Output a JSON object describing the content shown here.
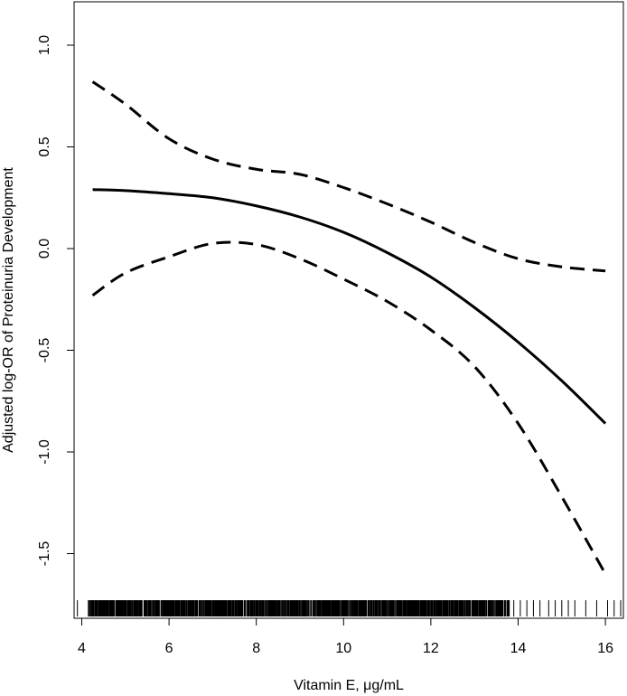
{
  "chart_data": {
    "type": "line",
    "title": "",
    "xlabel": "Vitamin E, μg/mL",
    "ylabel": "Adjusted log-OR of Proteinuria Development",
    "xlim": [
      3.8,
      16.4
    ],
    "ylim": [
      -1.75,
      1.2
    ],
    "grid": false,
    "legend": "none",
    "x_ticks": [
      4,
      6,
      8,
      10,
      12,
      14,
      16
    ],
    "x_tick_labels": [
      "4",
      "6",
      "8",
      "10",
      "12",
      "14",
      "16"
    ],
    "y_ticks": [
      1.0,
      0.5,
      0.0,
      -0.5,
      -1.0,
      -1.5
    ],
    "y_tick_labels": [
      "1.0",
      "0.5",
      "0.0",
      "-0.5",
      "-1.0",
      "-1.5"
    ],
    "series": [
      {
        "style": "solid",
        "points": [
          [
            4.25,
            0.29
          ],
          [
            5,
            0.285
          ],
          [
            6,
            0.27
          ],
          [
            7,
            0.25
          ],
          [
            8,
            0.21
          ],
          [
            9,
            0.155
          ],
          [
            10,
            0.08
          ],
          [
            11,
            -0.02
          ],
          [
            12,
            -0.14
          ],
          [
            13,
            -0.29
          ],
          [
            14,
            -0.46
          ],
          [
            15,
            -0.65
          ],
          [
            16,
            -0.86
          ]
        ]
      },
      {
        "style": "dashed",
        "points": [
          [
            4.25,
            0.82
          ],
          [
            5,
            0.71
          ],
          [
            6,
            0.54
          ],
          [
            7,
            0.44
          ],
          [
            8,
            0.39
          ],
          [
            9,
            0.365
          ],
          [
            10,
            0.3
          ],
          [
            11,
            0.22
          ],
          [
            12,
            0.13
          ],
          [
            13,
            0.03
          ],
          [
            14,
            -0.05
          ],
          [
            15,
            -0.09
          ],
          [
            16,
            -0.11
          ]
        ]
      },
      {
        "style": "dashed",
        "points": [
          [
            4.25,
            -0.23
          ],
          [
            5,
            -0.12
          ],
          [
            6,
            -0.04
          ],
          [
            7,
            0.025
          ],
          [
            8,
            0.02
          ],
          [
            9,
            -0.05
          ],
          [
            10,
            -0.15
          ],
          [
            11,
            -0.26
          ],
          [
            12,
            -0.4
          ],
          [
            13,
            -0.58
          ],
          [
            14,
            -0.86
          ],
          [
            15,
            -1.22
          ],
          [
            16,
            -1.6
          ]
        ]
      }
    ],
    "rug": {
      "dense_range": [
        4.15,
        13.8
      ],
      "sparse_values": [
        3.9,
        13.9,
        14.05,
        14.2,
        14.35,
        14.5,
        14.7,
        14.85,
        15.0,
        15.15,
        15.3,
        15.55,
        15.8,
        16.05,
        16.2,
        16.35
      ]
    }
  }
}
